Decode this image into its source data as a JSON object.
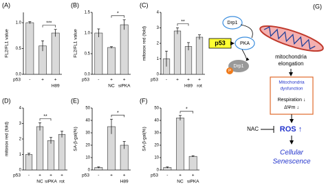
{
  "chart_data": [
    {
      "type": "bar",
      "panel": "(A)",
      "ylabel": "FL2/FL1 value",
      "values": [
        1.0,
        0.55,
        0.8
      ],
      "errors": [
        0.02,
        0.1,
        0.07
      ],
      "ylim": [
        0,
        1.2
      ],
      "yticks": [
        {
          "value": 0,
          "label": "0.0"
        },
        {
          "value": 0.5,
          "label": "0.5"
        },
        {
          "value": 1,
          "label": "1.0"
        }
      ],
      "significance": "***",
      "conditions": [
        {
          "name": "p53",
          "values": [
            "-",
            "+",
            "+"
          ]
        },
        {
          "values": [
            null,
            null,
            "H89"
          ]
        }
      ]
    },
    {
      "type": "bar",
      "panel": "(B)",
      "ylabel": "FL2/FL1 value",
      "values": [
        1.0,
        0.65,
        1.2
      ],
      "errors": [
        0.1,
        0.02,
        0.12
      ],
      "ylim": [
        0,
        1.5
      ],
      "yticks": [
        {
          "value": 0,
          "label": "0.0"
        },
        {
          "value": 0.5,
          "label": "0.5"
        },
        {
          "value": 1,
          "label": "1.0"
        },
        {
          "value": 1.5,
          "label": "1.5"
        }
      ],
      "significance": "*",
      "conditions": [
        {
          "name": "p53",
          "values": [
            "-",
            "+",
            "+"
          ]
        },
        {
          "values": [
            null,
            "NC",
            "siPKA"
          ]
        }
      ]
    },
    {
      "type": "bar",
      "panel": "(C)",
      "ylabel": "mitosox red (fold)",
      "values": [
        1.0,
        2.8,
        1.8,
        2.4
      ],
      "errors": [
        0.5,
        0.2,
        0.25,
        0.15
      ],
      "ylim": [
        0,
        4
      ],
      "yticks": [
        0,
        1,
        2,
        3,
        4
      ],
      "significance": "**",
      "conditions": [
        {
          "name": "p53",
          "values": [
            "-",
            "+",
            "+",
            "+"
          ]
        },
        {
          "values": [
            null,
            null,
            "H89",
            "rot"
          ]
        }
      ]
    },
    {
      "type": "bar",
      "panel": "(D)",
      "ylabel": "mitosox red (fold)",
      "values": [
        1.0,
        2.8,
        1.9,
        2.3
      ],
      "errors": [
        0.08,
        0.25,
        0.2,
        0.2
      ],
      "ylim": [
        0,
        4
      ],
      "yticks": [
        0,
        1,
        2,
        3,
        4
      ],
      "significance": "**",
      "conditions": [
        {
          "name": "p53",
          "values": [
            "-",
            "+",
            "+",
            "+"
          ]
        },
        {
          "values": [
            null,
            "NC",
            "siPKA",
            "rot"
          ]
        }
      ]
    },
    {
      "type": "bar",
      "panel": "(E)",
      "ylabel": "SA-β-gal(%)",
      "values": [
        2,
        35,
        20
      ],
      "errors": [
        0.5,
        6,
        3
      ],
      "ylim": [
        0,
        50
      ],
      "yticks": [
        0,
        10,
        20,
        30,
        40,
        50
      ],
      "significance": "*",
      "conditions": [
        {
          "name": "p53",
          "values": [
            "-",
            "+",
            "+"
          ]
        },
        {
          "values": [
            null,
            null,
            "H89"
          ]
        }
      ]
    },
    {
      "type": "bar",
      "panel": "(F)",
      "ylabel": "SA-β-gal(%)",
      "values": [
        2,
        42,
        11
      ],
      "errors": [
        0.5,
        2,
        0.5
      ],
      "ylim": [
        0,
        50
      ],
      "yticks": [
        0,
        10,
        20,
        30,
        40,
        50
      ],
      "significance": "*",
      "conditions": [
        {
          "name": "p53",
          "values": [
            "-",
            "+",
            "+"
          ]
        },
        {
          "values": [
            null,
            "NC",
            "siPKA"
          ]
        }
      ]
    }
  ],
  "diagram": {
    "panel": "(G)",
    "drp1_top": "Drp1",
    "p53": "p53",
    "pka": "PKA",
    "drp1_bottom": "Drp1",
    "phospho": "P",
    "elongation": [
      "mitochondria",
      "elongation"
    ],
    "dysfunction": [
      "Mitochondria",
      "dysfunction"
    ],
    "respiration": "Respiration ↓",
    "membrane": "ΔΨm ↓",
    "nac": "NAC",
    "ros": "ROS ↑",
    "senescence": [
      "Cellular",
      "Senescence"
    ]
  }
}
